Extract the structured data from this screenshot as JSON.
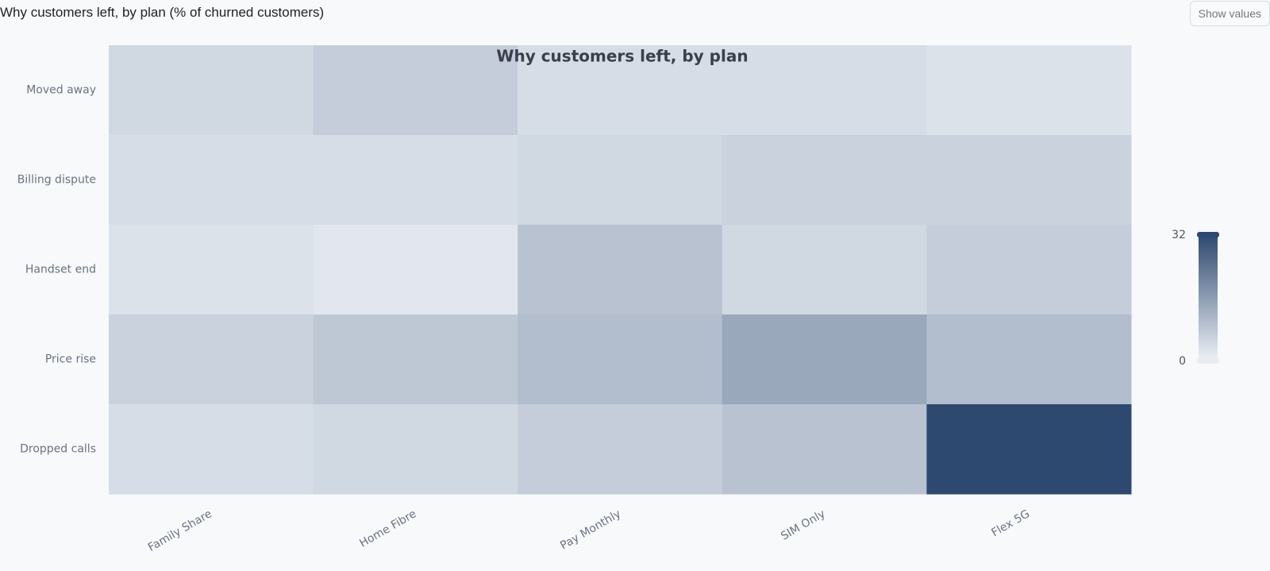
{
  "page_title": "Why customers left, by plan (% of churned customers)",
  "toggle_button": "Show values",
  "chart_data": {
    "type": "heatmap",
    "title": "Why customers left, by plan",
    "x": [
      "Family Share",
      "Home Fibre",
      "Pay Monthly",
      "SIM Only",
      "Flex 5G"
    ],
    "y": [
      "Moved away",
      "Billing dispute",
      "Handset end",
      "Price rise",
      "Dropped calls"
    ],
    "z": [
      [
        5,
        7,
        4,
        4,
        3
      ],
      [
        4,
        4,
        5,
        6,
        6
      ],
      [
        3,
        2,
        9,
        5,
        7
      ],
      [
        6,
        8,
        10,
        14,
        10
      ],
      [
        4,
        5,
        7,
        9,
        32
      ]
    ],
    "zlim": [
      0,
      32
    ],
    "zticks": [
      0,
      32
    ],
    "colorscale": [
      "#eef2f7",
      "#2e4970"
    ]
  }
}
